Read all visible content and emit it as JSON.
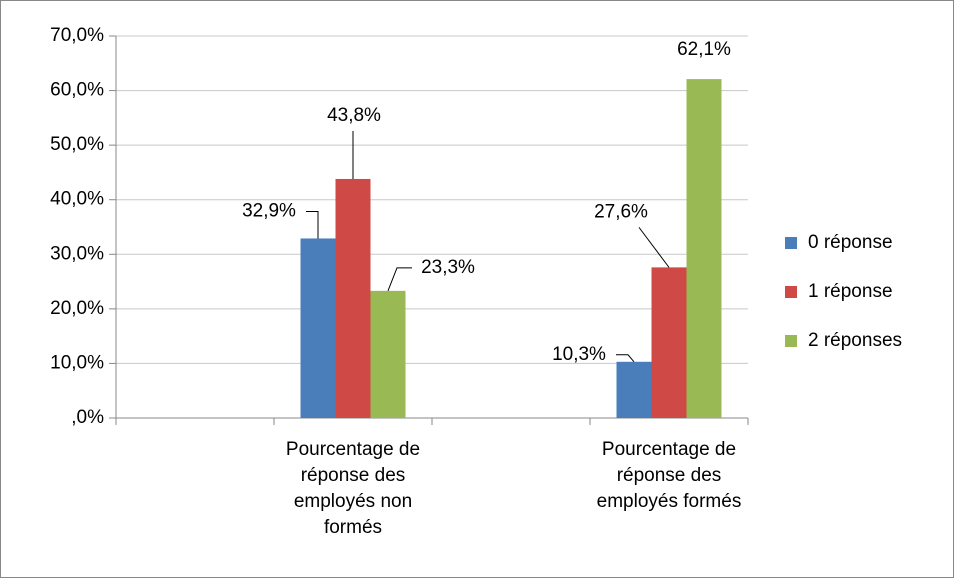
{
  "chart_data": {
    "type": "bar",
    "categories": [
      null,
      "Pourcentage de réponse des employés non formés",
      null,
      "Pourcentage de réponse des employés formés"
    ],
    "series": [
      {
        "name": "0 réponse",
        "color": "#4a7ebb",
        "values": [
          null,
          32.9,
          null,
          10.3
        ],
        "value_labels": [
          null,
          "32,9%",
          null,
          "10,3%"
        ]
      },
      {
        "name": "1 réponse",
        "color": "#cf4946",
        "values": [
          null,
          43.8,
          null,
          27.6
        ],
        "value_labels": [
          null,
          "43,8%",
          null,
          "27,6%"
        ]
      },
      {
        "name": "2 réponses",
        "color": "#98b954",
        "values": [
          null,
          23.3,
          null,
          62.1
        ],
        "value_labels": [
          null,
          "23,3%",
          null,
          "62,1%"
        ]
      }
    ],
    "ylim": [
      0,
      70
    ],
    "yticks": [
      {
        "value": 0,
        "label": ",0%"
      },
      {
        "value": 10,
        "label": "10,0%"
      },
      {
        "value": 20,
        "label": "20,0%"
      },
      {
        "value": 30,
        "label": "30,0%"
      },
      {
        "value": 40,
        "label": "40,0%"
      },
      {
        "value": 50,
        "label": "50,0%"
      },
      {
        "value": 60,
        "label": "60,0%"
      },
      {
        "value": 70,
        "label": "70,0%"
      }
    ],
    "grid": true,
    "legend": "right"
  }
}
